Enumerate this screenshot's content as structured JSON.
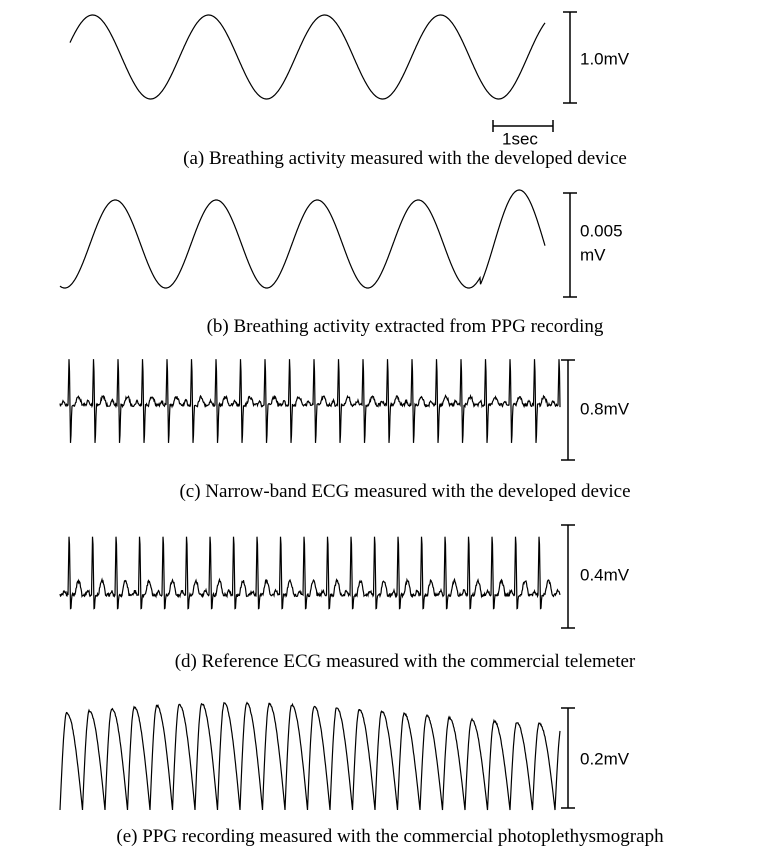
{
  "panels": [
    {
      "caption": "(a) Breathing activity measured with the developed device",
      "scale": "1.0mV",
      "time_scale": "1sec"
    },
    {
      "caption": "(b) Breathing activity extracted from PPG recording",
      "scale": [
        "0.005",
        "mV"
      ]
    },
    {
      "caption": "(c) Narrow-band ECG measured with the developed device",
      "scale": "0.8mV"
    },
    {
      "caption": "(d) Reference ECG measured with the commercial telemeter",
      "scale": "0.4mV"
    },
    {
      "caption": "(e) PPG recording measured with the commercial photoplethysmograph",
      "scale": "0.2mV"
    }
  ]
}
